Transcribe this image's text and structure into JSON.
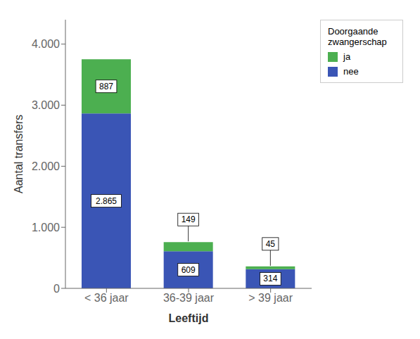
{
  "chart_data": {
    "type": "bar",
    "stacked": true,
    "data_labels": true,
    "grid": false,
    "legend": "right",
    "categories": [
      "< 36 jaar",
      "36-39 jaar",
      "> 39 jaar"
    ],
    "series": [
      {
        "name": "nee",
        "color": "#3a55b5",
        "values": [
          2865,
          609,
          314
        ],
        "value_labels": [
          "2.865",
          "609",
          "314"
        ]
      },
      {
        "name": "ja",
        "color": "#4caf50",
        "values": [
          887,
          149,
          45
        ],
        "value_labels": [
          "887",
          "149",
          "45"
        ]
      }
    ],
    "xlabel": "Leeftijd",
    "ylabel": "Aantal transfers",
    "legend_title": "Doorgaande\nzwangerschap",
    "ylim": [
      0,
      4400
    ],
    "yticks": [
      0,
      {
        "value": 1000,
        "label": "1.000"
      },
      {
        "value": 2000,
        "label": "2.000"
      },
      {
        "value": 3000,
        "label": "3.000"
      },
      {
        "value": 4000,
        "label": "4.000"
      }
    ]
  }
}
